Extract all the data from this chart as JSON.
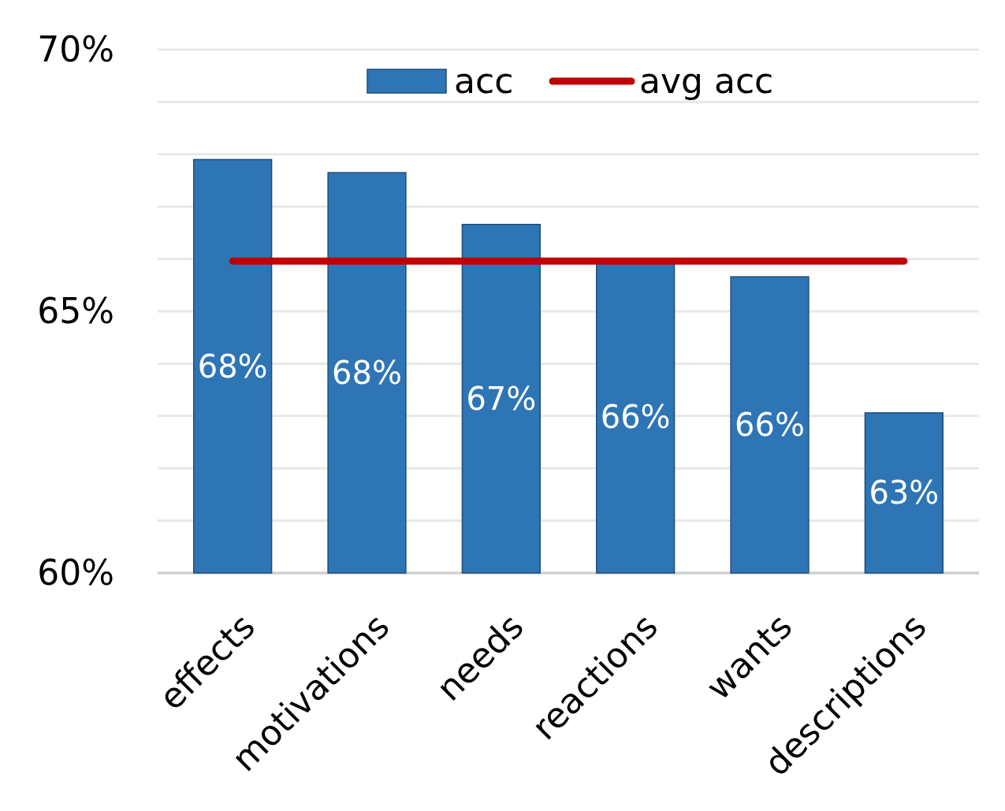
{
  "chart_data": {
    "type": "bar",
    "categories": [
      "effects",
      "motivations",
      "needs",
      "reactions",
      "wants",
      "descriptions"
    ],
    "series": [
      {
        "name": "acc",
        "color": "#2e75b6",
        "values": [
          67.9,
          67.65,
          66.66,
          65.95,
          65.66,
          63.06
        ],
        "value_labels": [
          "68%",
          "68%",
          "67%",
          "66%",
          "66%",
          "63%"
        ]
      },
      {
        "name": "avg acc",
        "type": "line",
        "color": "#c00000",
        "values": [
          65.96,
          65.96,
          65.96,
          65.96,
          65.96,
          65.96
        ]
      }
    ],
    "ylim": [
      60,
      70
    ],
    "yticks": [
      {
        "value": 60,
        "label": "60%"
      },
      {
        "value": 61,
        "label": null
      },
      {
        "value": 62,
        "label": null
      },
      {
        "value": 63,
        "label": null
      },
      {
        "value": 64,
        "label": null
      },
      {
        "value": 65,
        "label": "65%"
      },
      {
        "value": 66,
        "label": null
      },
      {
        "value": 67,
        "label": null
      },
      {
        "value": 68,
        "label": null
      },
      {
        "value": 69,
        "label": null
      },
      {
        "value": 70,
        "label": "70%"
      }
    ],
    "grid": "y",
    "legend": "top",
    "marker": "none",
    "line_style": "solid"
  }
}
